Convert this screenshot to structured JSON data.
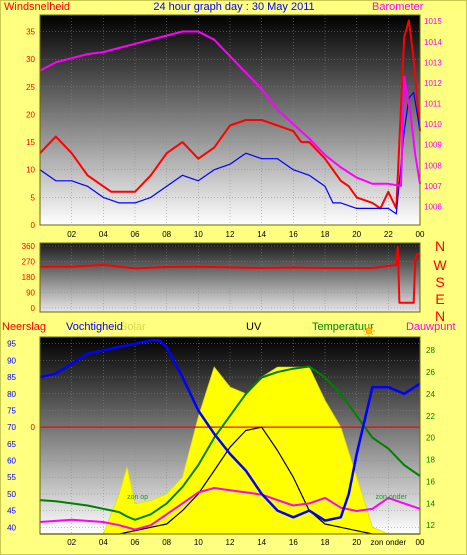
{
  "header": {
    "title": "24 hour graph day : 30 May 2011",
    "left_label": "Windsnelheid",
    "right_label": "Barometer"
  },
  "colors": {
    "background": "#ffff80",
    "wind": "#ff0000",
    "gust_avg": "#0000ff",
    "barometer": "#ff00ff",
    "direction": "#ff0000",
    "humidity": "#0000ff",
    "solar": "#ffff00",
    "uv": "#000000",
    "temperature": "#008000",
    "dewpoint": "#ff00ff",
    "rain": "#ff0000",
    "grid": "#808080"
  },
  "icons": {
    "sun": "sun-icon"
  },
  "chart_data": [
    {
      "id": "wind-barometer",
      "type": "line",
      "title": "24 hour graph day : 30 May 2011",
      "xlabel": "",
      "ylabel_left": "Windsnelheid",
      "ylabel_right": "Barometer",
      "x_ticks": [
        "02",
        "04",
        "06",
        "08",
        "10",
        "12",
        "14",
        "16",
        "18",
        "20",
        "22",
        "00"
      ],
      "y_left_ticks": [
        "0",
        "5",
        "10",
        "15",
        "20",
        "25",
        "30",
        "35"
      ],
      "y_right_ticks": [
        "1006",
        "1007",
        "1008",
        "1009",
        "1010",
        "1011",
        "1012",
        "1013",
        "1014",
        "1015"
      ],
      "y_left_range": [
        0,
        38
      ],
      "y_right_range": [
        1005.1,
        1015.3
      ],
      "x_range": [
        0,
        24
      ],
      "grid": true,
      "series": [
        {
          "axis": "left",
          "color": "#ff0000",
          "x": [
            0,
            1,
            2,
            3,
            4,
            4.5,
            5,
            6,
            7,
            8,
            9,
            10,
            11,
            12,
            13,
            14,
            15,
            16,
            16.5,
            17,
            18,
            19,
            19.5,
            20,
            21,
            21.5,
            22,
            22.5,
            23,
            23.3,
            23.6,
            24
          ],
          "y": [
            13,
            16,
            13,
            9,
            7,
            6,
            6,
            6,
            9,
            13,
            15,
            12,
            14,
            18,
            19,
            19,
            18,
            17,
            15,
            15,
            12,
            8,
            7,
            5,
            4,
            3,
            6,
            3,
            34,
            37,
            30,
            17
          ]
        },
        {
          "axis": "left",
          "color": "#0000ff",
          "x": [
            0,
            1,
            2,
            3,
            4,
            5,
            6,
            7,
            8,
            9,
            10,
            11,
            12,
            13,
            14,
            15,
            16,
            17,
            18,
            18.5,
            19,
            20,
            21,
            22,
            22.5,
            23,
            23.3,
            23.6,
            24
          ],
          "y": [
            10,
            8,
            8,
            7,
            5,
            4,
            4,
            5,
            7,
            9,
            8,
            10,
            11,
            13,
            12,
            12,
            10,
            9,
            7,
            4,
            4,
            3,
            3,
            3,
            2,
            17,
            23,
            24,
            17
          ]
        },
        {
          "axis": "right",
          "color": "#ff00ff",
          "x": [
            0,
            1,
            2,
            3,
            4,
            5,
            6,
            7,
            8,
            9,
            10,
            11,
            12,
            13,
            14,
            15,
            16,
            17,
            18,
            19,
            20,
            21,
            22,
            22.8,
            23,
            23.4,
            23.7,
            24
          ],
          "y": [
            1012.6,
            1013.0,
            1013.2,
            1013.4,
            1013.5,
            1013.7,
            1013.9,
            1014.1,
            1014.3,
            1014.5,
            1014.5,
            1014.1,
            1013.3,
            1012.5,
            1011.7,
            1010.7,
            1010.0,
            1009.3,
            1008.5,
            1007.9,
            1007.4,
            1007.1,
            1007.1,
            1007.0,
            1012.3,
            1010.5,
            1008.5,
            1007.1
          ]
        }
      ]
    },
    {
      "id": "wind-direction",
      "type": "line",
      "title": "",
      "xlabel": "",
      "ylabel": "",
      "y_ticks": [
        "0",
        "90",
        "180",
        "270",
        "360"
      ],
      "y_range": [
        0,
        360
      ],
      "x_range": [
        0,
        24
      ],
      "compass_labels": [
        "N",
        "W",
        "S",
        "E",
        "N"
      ],
      "grid": true,
      "series": [
        {
          "color": "#ff0000",
          "x": [
            0,
            2,
            4,
            6,
            8,
            10,
            12,
            14,
            16,
            18,
            20,
            21,
            22.5,
            22.6,
            22.7,
            23.0,
            23.6,
            23.7,
            23.8,
            24
          ],
          "y": [
            240,
            240,
            250,
            230,
            238,
            240,
            236,
            232,
            235,
            232,
            232,
            232,
            250,
            355,
            30,
            30,
            30,
            290,
            310,
            320
          ]
        }
      ]
    },
    {
      "id": "weather-combined",
      "type": "line",
      "title": "",
      "xlabel": "",
      "legend": [
        "Neerslag",
        "Vochtigheid",
        "Solar",
        "UV",
        "Temperatuur",
        "Dauwpunt"
      ],
      "x_ticks": [
        "02",
        "04",
        "06",
        "08",
        "10",
        "12",
        "14",
        "16",
        "18",
        "20",
        "zon onder",
        "00"
      ],
      "y_left_ticks": [
        "40",
        "45",
        "50",
        "55",
        "60",
        "65",
        "70",
        "75",
        "80",
        "85",
        "90",
        "95"
      ],
      "y_right_ticks": [
        "12",
        "14",
        "16",
        "18",
        "20",
        "22",
        "24",
        "26",
        "28"
      ],
      "y_left_range": [
        38,
        97
      ],
      "y_right_range": [
        11.2,
        29.2
      ],
      "x_range": [
        0,
        24
      ],
      "rain_zero_label": "0",
      "sunrise_label": "zon op",
      "sunset_label": "zon onder",
      "grid": true,
      "series": [
        {
          "name": "Vochtigheid",
          "axis": "left",
          "color": "#0000ff",
          "x": [
            0,
            1,
            2,
            3,
            4,
            5,
            6,
            7,
            7.5,
            8,
            9,
            10,
            11,
            12,
            13,
            14,
            15,
            16,
            17,
            18,
            19,
            19.5,
            20,
            21,
            22,
            23,
            24
          ],
          "y": [
            85,
            86,
            89,
            92,
            93,
            94,
            95,
            96,
            96,
            94,
            85,
            75,
            68,
            62,
            57,
            50,
            45,
            43,
            45,
            42,
            43,
            50,
            62,
            82,
            82,
            80,
            83
          ]
        },
        {
          "name": "Temperatuur",
          "axis": "right",
          "color": "#008000",
          "x": [
            0,
            1,
            2,
            3,
            4,
            5,
            5.5,
            6,
            7,
            8,
            9,
            10,
            11,
            12,
            13,
            14,
            15,
            16,
            17,
            18,
            19,
            20,
            21,
            22,
            23,
            24
          ],
          "y": [
            14.3,
            14.2,
            14.0,
            13.8,
            13.5,
            13.2,
            12.8,
            12.5,
            13.0,
            14.0,
            15.5,
            17.5,
            20.0,
            22.0,
            24.0,
            25.5,
            26.0,
            26.3,
            26.5,
            25.5,
            24.0,
            22.0,
            20.0,
            19.0,
            17.5,
            16.5
          ]
        },
        {
          "name": "Dauwpunt",
          "axis": "right",
          "color": "#ff00ff",
          "x": [
            0,
            1,
            2,
            3,
            4,
            5,
            5.5,
            6,
            7,
            8,
            9,
            10,
            11,
            12,
            13,
            14,
            15,
            16,
            17,
            18,
            19,
            20,
            21,
            22,
            23,
            24
          ],
          "y": [
            12.3,
            12.4,
            12.5,
            12.4,
            12.3,
            12.0,
            11.8,
            11.6,
            12.0,
            13.0,
            14.0,
            15.0,
            15.4,
            15.2,
            15.0,
            14.8,
            14.3,
            13.8,
            14.0,
            14.5,
            13.6,
            13.3,
            13.5,
            14.5,
            14.0,
            13.5
          ]
        },
        {
          "name": "UV",
          "axis": "left",
          "color": "#000000",
          "x": [
            0,
            5,
            6,
            7,
            8,
            9,
            10,
            11,
            12,
            13,
            14,
            15,
            16,
            17,
            18,
            19,
            20,
            21,
            24
          ],
          "y": [
            38,
            38,
            39,
            40,
            41,
            45,
            50,
            57,
            64,
            69,
            70,
            63,
            55,
            45,
            41,
            40,
            39,
            38,
            38
          ]
        },
        {
          "name": "Solar",
          "axis": "left",
          "color": "#ffff00",
          "x": [
            0,
            4,
            5,
            5.5,
            6,
            7,
            8,
            9,
            10,
            11,
            12,
            13,
            14,
            15,
            16,
            17,
            18,
            19,
            20,
            21,
            22,
            24
          ],
          "y": [
            38,
            38,
            50,
            58,
            47,
            48,
            50,
            55,
            73,
            88,
            82,
            80,
            85,
            88,
            88,
            88,
            78,
            70,
            55,
            40,
            38,
            38
          ]
        }
      ]
    }
  ]
}
